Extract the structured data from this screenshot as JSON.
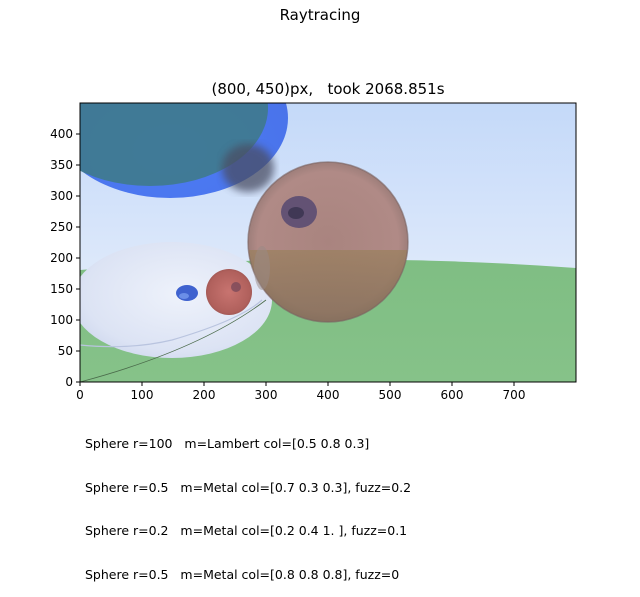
{
  "figure": {
    "suptitle": "Raytracing",
    "axes_title": "(800, 450)px,   took 2068.851s"
  },
  "chart_data": {
    "type": "image",
    "title": "(800, 450)px,   took 2068.851s",
    "xlim": [
      0,
      800
    ],
    "ylim": [
      0,
      450
    ],
    "xticks": [
      0,
      100,
      200,
      300,
      400,
      500,
      600,
      700
    ],
    "yticks": [
      0,
      50,
      100,
      150,
      200,
      250,
      300,
      350,
      400
    ],
    "grid": false,
    "colors": {
      "sky_top": "#c7dbf9",
      "sky_horizon": "#ecf2fb",
      "ground": "#84c187",
      "sphere_large": "#b48584",
      "sphere_small": "#b55a5a",
      "sphere_blue": "#5377f0",
      "sphere_glass": "#dde3f3"
    }
  },
  "caption": [
    "Sphere r=100   m=Lambert col=[0.5 0.8 0.3]",
    "Sphere r=0.5   m=Metal col=[0.7 0.3 0.3], fuzz=0.2",
    "Sphere r=0.2   m=Metal col=[0.2 0.4 1. ], fuzz=0.1",
    "Sphere r=0.5   m=Metal col=[0.8 0.8 0.8], fuzz=0"
  ]
}
